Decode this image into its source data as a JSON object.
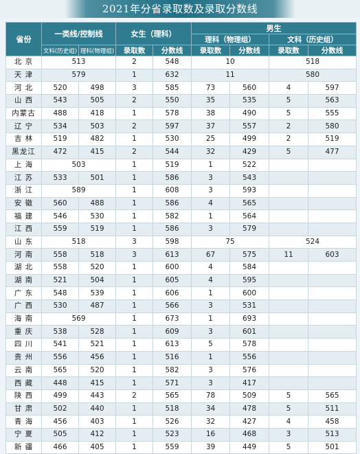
{
  "title": "2021年分省录取数及录取分数线",
  "headers": {
    "province": "省份",
    "first_tier": "一类线/控制线",
    "first_tier_hist": "文科(历史组)",
    "first_tier_phys": "理科(物理组)",
    "female": "女生（理科）",
    "male": "男生",
    "male_sci": "理科（物理组）",
    "male_arts": "文科（历史组）",
    "admitted": "录取数",
    "score": "分数线"
  },
  "rows": [
    {
      "prov": "北  京",
      "cA": "513",
      "fn": "2",
      "fs": "548",
      "msA": "10",
      "maA": "518"
    },
    {
      "prov": "天  津",
      "cA": "579",
      "fn": "1",
      "fs": "632",
      "msA": "11",
      "maA": "580"
    },
    {
      "prov": "河  北",
      "c1": "520",
      "c2": "498",
      "fn": "3",
      "fs": "585",
      "mn": "73",
      "ms": "560",
      "an": "4",
      "as": "597"
    },
    {
      "prov": "山  西",
      "c1": "543",
      "c2": "505",
      "fn": "2",
      "fs": "550",
      "mn": "35",
      "ms": "535",
      "an": "5",
      "as": "563"
    },
    {
      "prov": "内蒙古",
      "c1": "488",
      "c2": "418",
      "fn": "1",
      "fs": "578",
      "mn": "38",
      "ms": "490",
      "an": "5",
      "as": "555"
    },
    {
      "prov": "辽  宁",
      "c1": "534",
      "c2": "503",
      "fn": "2",
      "fs": "597",
      "mn": "37",
      "ms": "557",
      "an": "2",
      "as": "580"
    },
    {
      "prov": "吉  林",
      "c1": "519",
      "c2": "482",
      "fn": "1",
      "fs": "530",
      "mn": "25",
      "ms": "499",
      "an": "2",
      "as": "519"
    },
    {
      "prov": "黑龙江",
      "c1": "472",
      "c2": "415",
      "fn": "2",
      "fs": "544",
      "mn": "32",
      "ms": "429",
      "an": "5",
      "as": "477"
    },
    {
      "prov": "上  海",
      "cA": "503",
      "fn": "1",
      "fs": "519",
      "mn": "1",
      "ms": "522"
    },
    {
      "prov": "江  苏",
      "c1": "533",
      "c2": "501",
      "fn": "1",
      "fs": "586",
      "mn": "3",
      "ms": "543"
    },
    {
      "prov": "浙  江",
      "cA": "589",
      "fn": "1",
      "fs": "608",
      "mn": "3",
      "ms": "593"
    },
    {
      "prov": "安  徽",
      "c1": "560",
      "c2": "488",
      "fn": "1",
      "fs": "586",
      "mn": "4",
      "ms": "565"
    },
    {
      "prov": "福  建",
      "c1": "546",
      "c2": "530",
      "fn": "1",
      "fs": "582",
      "mn": "1",
      "ms": "564"
    },
    {
      "prov": "江  西",
      "c1": "559",
      "c2": "519",
      "fn": "1",
      "fs": "586",
      "mn": "3",
      "ms": "579"
    },
    {
      "prov": "山  东",
      "cA": "518",
      "fn": "3",
      "fs": "598",
      "msA": "75",
      "maA": "524"
    },
    {
      "prov": "河  南",
      "c1": "558",
      "c2": "518",
      "fn": "3",
      "fs": "613",
      "mn": "67",
      "ms": "575",
      "an": "11",
      "as": "603"
    },
    {
      "prov": "湖  北",
      "c1": "558",
      "c2": "520",
      "fn": "1",
      "fs": "600",
      "mn": "4",
      "ms": "584"
    },
    {
      "prov": "湖  南",
      "c1": "521",
      "c2": "504",
      "fn": "1",
      "fs": "605",
      "mn": "4",
      "ms": "595"
    },
    {
      "prov": "广  东",
      "c1": "548",
      "c2": "539",
      "fn": "1",
      "fs": "606",
      "mn": "1",
      "ms": "600"
    },
    {
      "prov": "广  西",
      "c1": "530",
      "c2": "487",
      "fn": "1",
      "fs": "566",
      "mn": "3",
      "ms": "531"
    },
    {
      "prov": "海  南",
      "cA": "569",
      "fn": "1",
      "fs": "673",
      "mn": "1",
      "ms": "693"
    },
    {
      "prov": "重  庆",
      "c1": "538",
      "c2": "528",
      "fn": "1",
      "fs": "609",
      "mn": "3",
      "ms": "601"
    },
    {
      "prov": "四  川",
      "c1": "541",
      "c2": "521",
      "fn": "1",
      "fs": "613",
      "mn": "5",
      "ms": "578"
    },
    {
      "prov": "贵  州",
      "c1": "556",
      "c2": "456",
      "fn": "1",
      "fs": "516",
      "mn": "1",
      "ms": "556"
    },
    {
      "prov": "云  南",
      "c1": "565",
      "c2": "520",
      "fn": "1",
      "fs": "582",
      "mn": "3",
      "ms": "576"
    },
    {
      "prov": "西  藏",
      "c1": "448",
      "c2": "415",
      "fn": "1",
      "fs": "571",
      "mn": "3",
      "ms": "417"
    },
    {
      "prov": "陕  西",
      "c1": "499",
      "c2": "443",
      "fn": "2",
      "fs": "565",
      "mn": "78",
      "ms": "509",
      "an": "5",
      "as": "565"
    },
    {
      "prov": "甘  肃",
      "c1": "502",
      "c2": "440",
      "fn": "1",
      "fs": "518",
      "mn": "34",
      "ms": "478",
      "an": "5",
      "as": "511"
    },
    {
      "prov": "青  海",
      "c1": "456",
      "c2": "403",
      "fn": "1",
      "fs": "526",
      "mn": "32",
      "ms": "427",
      "an": "4",
      "as": "458"
    },
    {
      "prov": "宁  夏",
      "c1": "505",
      "c2": "412",
      "fn": "1",
      "fs": "523",
      "mn": "16",
      "ms": "468",
      "an": "3",
      "as": "513"
    },
    {
      "prov": "新  疆",
      "c1": "466",
      "c2": "405",
      "fn": "1",
      "fs": "559",
      "mn": "39",
      "ms": "449",
      "an": "5",
      "as": "501"
    }
  ]
}
